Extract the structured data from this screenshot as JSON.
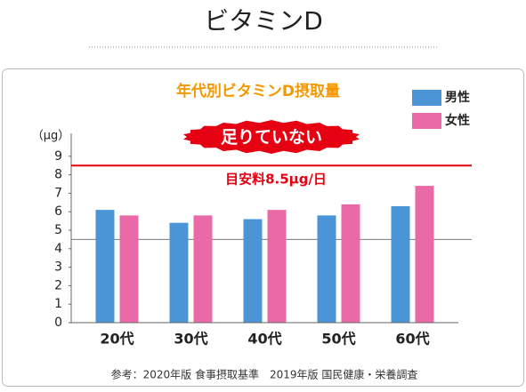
{
  "page_title": "ビタミンD",
  "chart_data": {
    "type": "bar",
    "title": "年代別ビタミンD摂取量",
    "y_unit": "（μg）",
    "categories": [
      "20代",
      "30代",
      "40代",
      "50代",
      "60代"
    ],
    "series": [
      {
        "name": "男性",
        "color": "#4b94d6",
        "values": [
          6.1,
          5.4,
          5.6,
          5.8,
          6.3
        ]
      },
      {
        "name": "女性",
        "color": "#e96aa6",
        "values": [
          5.8,
          5.8,
          6.1,
          6.4,
          7.4
        ]
      }
    ],
    "ylim": [
      0,
      10
    ],
    "yticks": [
      0,
      1,
      2,
      3,
      4,
      5,
      6,
      7,
      8,
      9
    ],
    "reference_lines": [
      {
        "value": 8.5,
        "label": "目安料8.5μg/日",
        "color": "#e50012"
      },
      {
        "value": 4.5,
        "color": "#777777"
      }
    ],
    "annotation": "足りていない",
    "legend": "top-right",
    "source": "参考：2020年版 食事摂取基準　2019年版 国民健康・栄養調査"
  }
}
